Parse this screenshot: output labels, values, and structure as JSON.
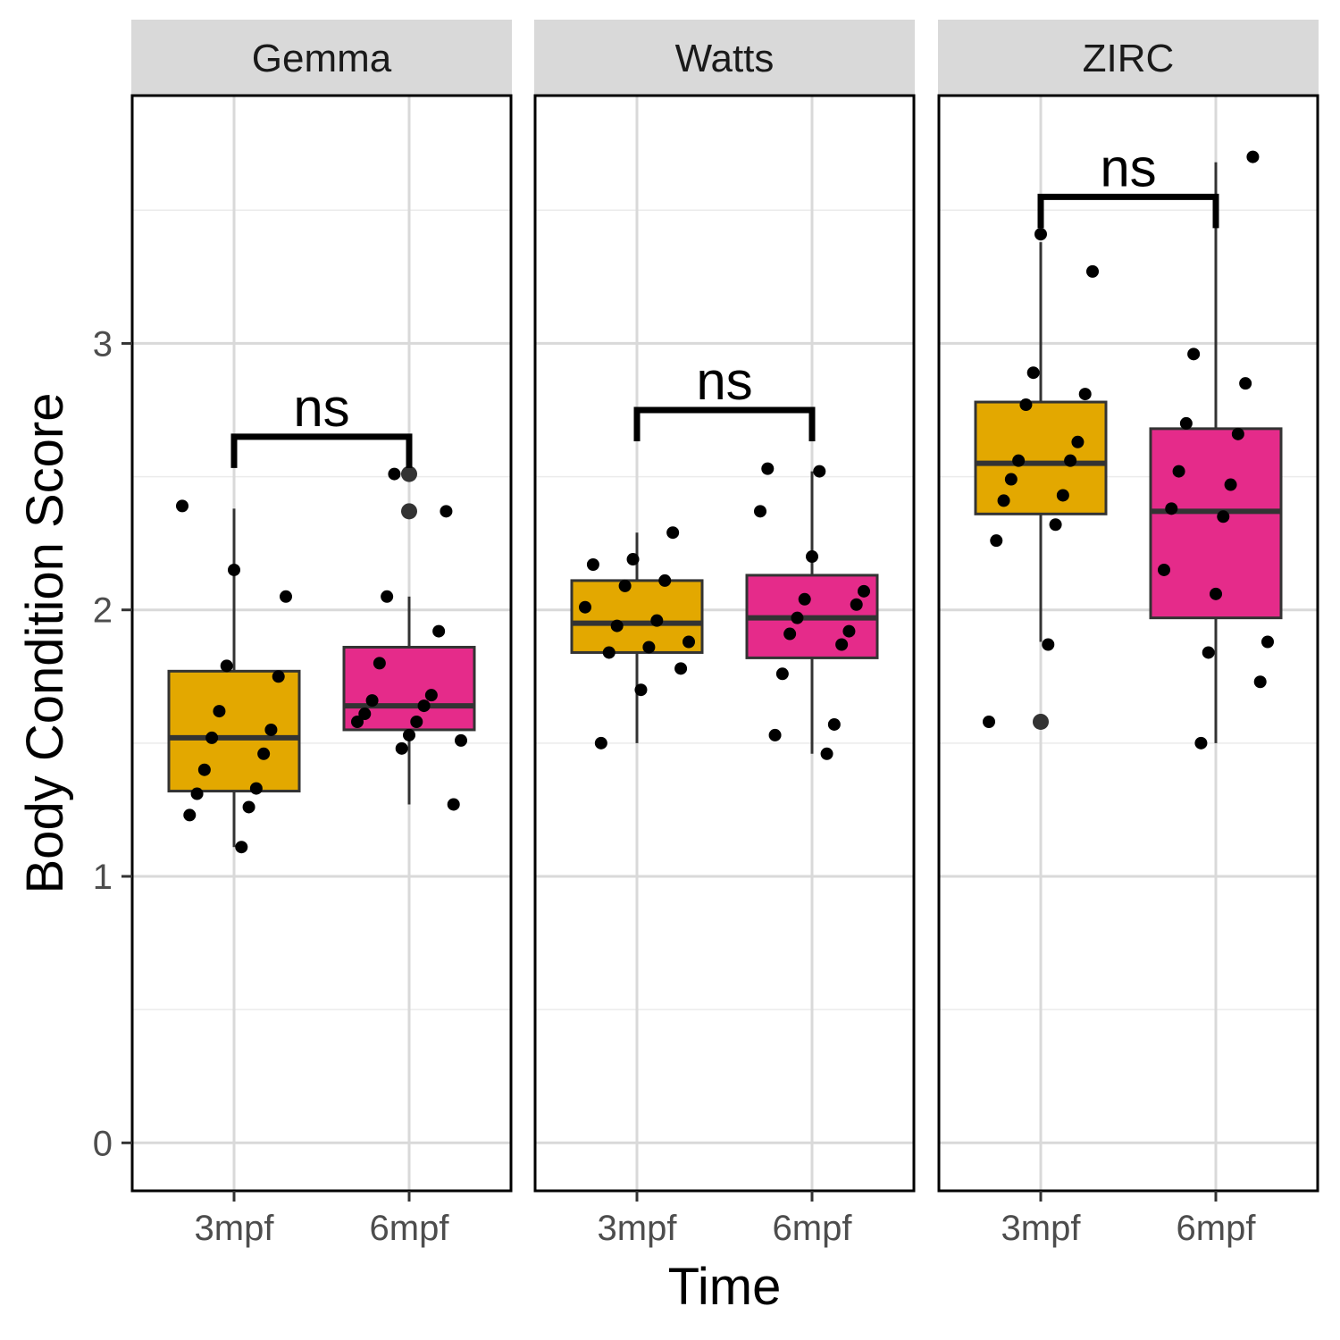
{
  "chart_data": {
    "type": "box",
    "xlabel": "Time",
    "ylabel": "Body Condition Score",
    "ylim": [
      -0.18,
      3.93
    ],
    "y_ticks": [
      0,
      1,
      2,
      3
    ],
    "y_tick_labels": [
      "0",
      "1",
      "2",
      "3"
    ],
    "grid": true,
    "categories": [
      "3mpf",
      "6mpf"
    ],
    "colors": {
      "3mpf": "#E3A800",
      "6mpf": "#E52B8A"
    },
    "facets": [
      {
        "name": "Gemma",
        "boxes": [
          {
            "category": "3mpf",
            "whisker_low": 1.11,
            "q1": 1.32,
            "median": 1.52,
            "q3": 1.77,
            "whisker_high": 2.38,
            "outliers": [],
            "points": [
              2.39,
              2.15,
              2.05,
              1.79,
              1.75,
              1.62,
              1.55,
              1.52,
              1.46,
              1.4,
              1.33,
              1.31,
              1.26,
              1.23,
              1.11
            ]
          },
          {
            "category": "6mpf",
            "whisker_low": 1.27,
            "q1": 1.55,
            "median": 1.64,
            "q3": 1.86,
            "whisker_high": 2.05,
            "outliers": [
              2.51,
              2.37
            ],
            "points": [
              2.51,
              2.37,
              2.05,
              1.92,
              1.8,
              1.68,
              1.66,
              1.64,
              1.61,
              1.58,
              1.58,
              1.53,
              1.51,
              1.48,
              1.27
            ]
          }
        ],
        "significance": {
          "label": "ns",
          "y": 2.65
        }
      },
      {
        "name": "Watts",
        "boxes": [
          {
            "category": "3mpf",
            "whisker_low": 1.5,
            "q1": 1.84,
            "median": 1.95,
            "q3": 2.11,
            "whisker_high": 2.29,
            "outliers": [],
            "points": [
              2.29,
              2.19,
              2.17,
              2.11,
              2.09,
              2.01,
              1.96,
              1.94,
              1.88,
              1.86,
              1.84,
              1.78,
              1.7,
              1.5
            ]
          },
          {
            "category": "6mpf",
            "whisker_low": 1.46,
            "q1": 1.82,
            "median": 1.97,
            "q3": 2.13,
            "whisker_high": 2.52,
            "outliers": [],
            "points": [
              2.53,
              2.52,
              2.37,
              2.2,
              2.07,
              2.04,
              2.02,
              1.97,
              1.92,
              1.91,
              1.87,
              1.76,
              1.57,
              1.53,
              1.46
            ]
          }
        ],
        "significance": {
          "label": "ns",
          "y": 2.75
        }
      },
      {
        "name": "ZIRC",
        "boxes": [
          {
            "category": "3mpf",
            "whisker_low": 1.88,
            "q1": 2.36,
            "median": 2.55,
            "q3": 2.78,
            "whisker_high": 3.38,
            "outliers": [
              1.58
            ],
            "points": [
              3.41,
              3.27,
              2.89,
              2.81,
              2.77,
              2.63,
              2.56,
              2.56,
              2.49,
              2.43,
              2.41,
              2.32,
              2.26,
              1.87,
              1.58
            ]
          },
          {
            "category": "6mpf",
            "whisker_low": 1.5,
            "q1": 1.97,
            "median": 2.37,
            "q3": 2.68,
            "whisker_high": 3.68,
            "outliers": [],
            "points": [
              3.7,
              2.96,
              2.85,
              2.7,
              2.66,
              2.52,
              2.47,
              2.38,
              2.35,
              2.15,
              2.06,
              1.88,
              1.84,
              1.73,
              1.5
            ]
          }
        ],
        "significance": {
          "label": "ns",
          "y": 3.55
        }
      }
    ]
  }
}
